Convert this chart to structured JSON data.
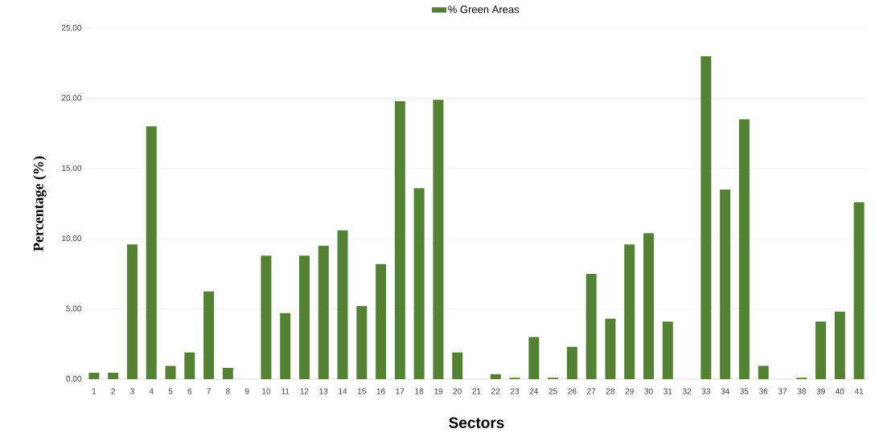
{
  "chart_data": {
    "type": "bar",
    "xlabel": "Sectors",
    "ylabel": "Percentage (%)",
    "categories": [
      "1",
      "2",
      "3",
      "4",
      "5",
      "6",
      "7",
      "8",
      "9",
      "10",
      "11",
      "12",
      "13",
      "14",
      "15",
      "16",
      "17",
      "18",
      "19",
      "20",
      "21",
      "22",
      "23",
      "24",
      "25",
      "26",
      "27",
      "28",
      "29",
      "30",
      "31",
      "32",
      "33",
      "34",
      "35",
      "36",
      "37",
      "38",
      "39",
      "40",
      "41"
    ],
    "series": [
      {
        "name": "% Green Areas",
        "color": "#548235",
        "values": [
          0.45,
          0.45,
          9.6,
          18.0,
          0.95,
          1.9,
          6.25,
          0.8,
          0,
          8.8,
          4.7,
          8.8,
          9.5,
          10.6,
          5.2,
          8.2,
          19.8,
          13.6,
          19.9,
          1.9,
          0,
          0.35,
          0.1,
          3.0,
          0.1,
          2.3,
          7.5,
          4.3,
          9.6,
          10.4,
          4.1,
          0,
          23.0,
          13.5,
          18.5,
          0.95,
          0,
          0.1,
          4.1,
          4.8,
          12.6
        ]
      }
    ],
    "ylim": [
      0,
      25
    ],
    "yticks": [
      {
        "value": 0,
        "label": "0,00"
      },
      {
        "value": 5,
        "label": "5,00"
      },
      {
        "value": 10,
        "label": "10,00"
      },
      {
        "value": 15,
        "label": "15,00"
      },
      {
        "value": 20,
        "label": "20,00"
      },
      {
        "value": 25,
        "label": "25,00"
      }
    ],
    "grid": "y",
    "legend": "top"
  }
}
